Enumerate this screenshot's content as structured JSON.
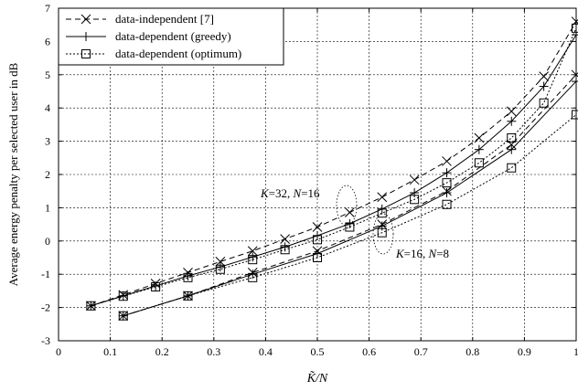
{
  "chart_data": {
    "type": "line",
    "title": "",
    "xlabel": "K̃/N",
    "ylabel": "Average energy penalty per selected user in dB",
    "xlim": [
      0,
      1
    ],
    "ylim": [
      -3,
      7
    ],
    "xticks": [
      "0",
      "0.1",
      "0.2",
      "0.3",
      "0.4",
      "0.5",
      "0.6",
      "0.7",
      "0.8",
      "0.9",
      "1"
    ],
    "yticks": [
      "-3",
      "-2",
      "-1",
      "0",
      "1",
      "2",
      "3",
      "4",
      "5",
      "6",
      "7"
    ],
    "grid": true,
    "legend": {
      "placement": "top-left",
      "entries": [
        {
          "label": "data-independent [7]",
          "style": "dashed",
          "marker": "x"
        },
        {
          "label": "data-dependent (greedy)",
          "style": "solid",
          "marker": "plus"
        },
        {
          "label": "data-dependent (optimum)",
          "style": "dotted",
          "marker": "square"
        }
      ]
    },
    "annotations": [
      {
        "text_parts": [
          {
            "t": "K",
            "i": true
          },
          {
            "t": "=32, ",
            "i": false
          },
          {
            "t": "N",
            "i": true
          },
          {
            "t": "=16",
            "i": false
          }
        ],
        "x": 0.565,
        "y": 1.0
      },
      {
        "text_parts": [
          {
            "t": "K",
            "i": true
          },
          {
            "t": "=16, ",
            "i": false
          },
          {
            "t": "N",
            "i": true
          },
          {
            "t": "=8",
            "i": false
          }
        ],
        "x": 0.62,
        "y": 0.15
      }
    ],
    "series": [
      {
        "group": "K=32, N=16",
        "style": "dashed",
        "marker": "x",
        "x": [
          0.0625,
          0.125,
          0.1875,
          0.25,
          0.3125,
          0.375,
          0.4375,
          0.5,
          0.5625,
          0.625,
          0.6875,
          0.75,
          0.8125,
          0.875,
          0.9375,
          1.0
        ],
        "y": [
          -1.95,
          -1.62,
          -1.28,
          -0.95,
          -0.62,
          -0.3,
          0.06,
          0.42,
          0.86,
          1.32,
          1.84,
          2.4,
          3.1,
          3.9,
          4.95,
          6.6
        ]
      },
      {
        "group": "K=32, N=16",
        "style": "solid",
        "marker": "plus",
        "x": [
          0.0625,
          0.125,
          0.1875,
          0.25,
          0.3125,
          0.375,
          0.4375,
          0.5,
          0.5625,
          0.625,
          0.6875,
          0.75,
          0.8125,
          0.875,
          0.9375,
          1.0
        ],
        "y": [
          -1.95,
          -1.65,
          -1.35,
          -1.05,
          -0.78,
          -0.48,
          -0.18,
          0.16,
          0.52,
          0.96,
          1.45,
          2.05,
          2.75,
          3.6,
          4.65,
          6.2
        ]
      },
      {
        "group": "K=32, N=16",
        "style": "dotted",
        "marker": "square",
        "x": [
          0.0625,
          0.125,
          0.1875,
          0.25,
          0.3125,
          0.375,
          0.4375,
          0.5,
          0.5625,
          0.625,
          0.6875,
          0.75,
          0.8125,
          0.875,
          0.9375,
          1.0
        ],
        "y": [
          -1.95,
          -1.66,
          -1.38,
          -1.1,
          -0.85,
          -0.56,
          -0.26,
          0.04,
          0.42,
          0.84,
          1.25,
          1.75,
          2.35,
          3.1,
          4.15,
          6.4
        ]
      },
      {
        "group": "K=16, N=8",
        "style": "dashed",
        "marker": "x",
        "x": [
          0.125,
          0.25,
          0.375,
          0.5,
          0.625,
          0.75,
          0.875,
          1.0
        ],
        "y": [
          -2.25,
          -1.65,
          -0.95,
          -0.3,
          0.5,
          1.5,
          2.9,
          5.0
        ]
      },
      {
        "group": "K=16, N=8",
        "style": "solid",
        "marker": "plus",
        "x": [
          0.125,
          0.25,
          0.375,
          0.5,
          0.625,
          0.75,
          0.875,
          1.0
        ],
        "y": [
          -2.25,
          -1.65,
          -1.0,
          -0.38,
          0.45,
          1.45,
          2.75,
          4.8
        ]
      },
      {
        "group": "K=16, N=8",
        "style": "dotted",
        "marker": "square",
        "x": [
          0.125,
          0.25,
          0.375,
          0.5,
          0.625,
          0.75,
          0.875,
          1.0
        ],
        "y": [
          -2.25,
          -1.65,
          -1.1,
          -0.5,
          0.25,
          1.1,
          2.2,
          3.8
        ]
      }
    ]
  }
}
